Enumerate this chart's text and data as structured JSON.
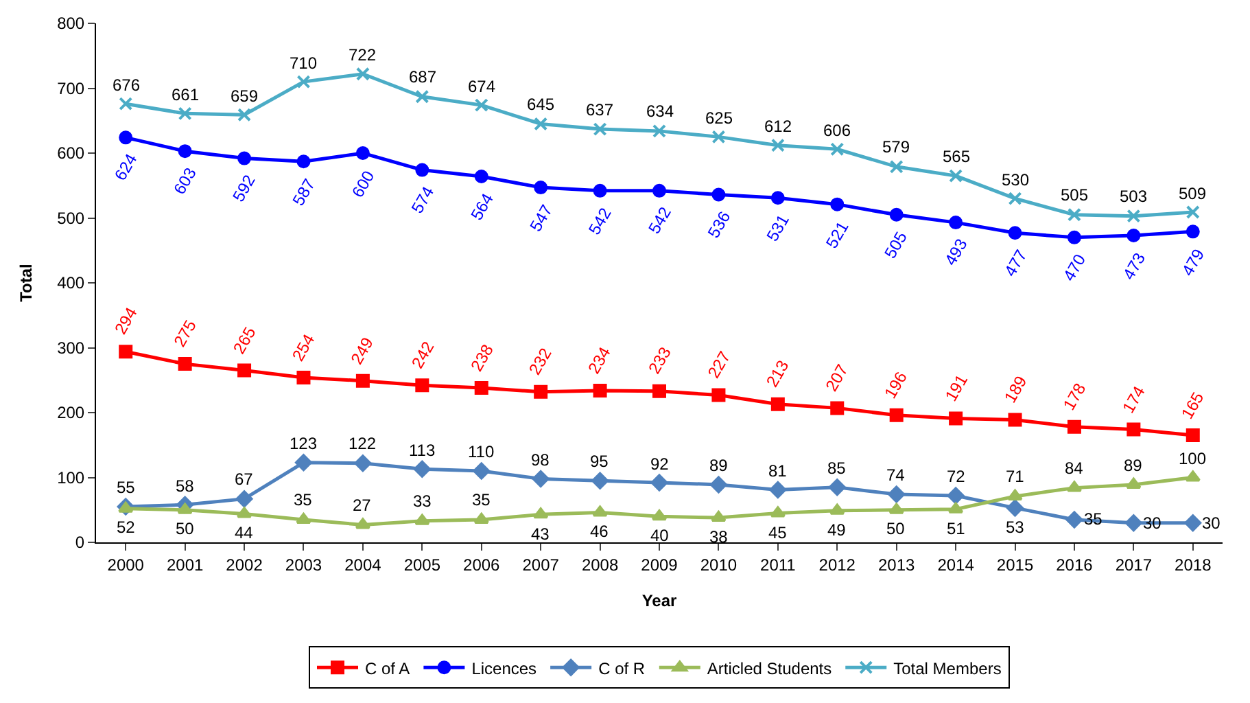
{
  "chart_data": {
    "type": "line",
    "xlabel": "Year",
    "ylabel": "Total",
    "categories": [
      "2000",
      "2001",
      "2002",
      "2003",
      "2004",
      "2005",
      "2006",
      "2007",
      "2008",
      "2009",
      "2010",
      "2011",
      "2012",
      "2013",
      "2014",
      "2015",
      "2016",
      "2017",
      "2018"
    ],
    "ylim": [
      0,
      800
    ],
    "yticks": [
      0,
      100,
      200,
      300,
      400,
      500,
      600,
      700,
      800
    ],
    "legend": "bottom",
    "data_labels": true,
    "series": [
      {
        "name": "C of A",
        "color": "#ff0000",
        "marker": "square",
        "values": [
          294,
          275,
          265,
          254,
          249,
          242,
          238,
          232,
          234,
          233,
          227,
          213,
          207,
          196,
          191,
          189,
          178,
          174,
          165
        ]
      },
      {
        "name": "Licences",
        "color": "#0000ff",
        "marker": "circle",
        "values": [
          624,
          603,
          592,
          587,
          600,
          574,
          564,
          547,
          542,
          542,
          536,
          531,
          521,
          505,
          493,
          477,
          470,
          473,
          479
        ]
      },
      {
        "name": "C of R",
        "color": "#4f81bd",
        "marker": "diamond",
        "values": [
          55,
          58,
          67,
          123,
          122,
          113,
          110,
          98,
          95,
          92,
          89,
          81,
          85,
          74,
          72,
          53,
          35,
          30,
          30
        ]
      },
      {
        "name": "Articled Students",
        "color": "#9bbb59",
        "marker": "triangle",
        "values": [
          52,
          50,
          44,
          35,
          27,
          33,
          35,
          43,
          46,
          40,
          38,
          45,
          49,
          50,
          51,
          71,
          84,
          89,
          100
        ]
      },
      {
        "name": "Total Members",
        "color": "#4bacc6",
        "marker": "cross",
        "values": [
          676,
          661,
          659,
          710,
          722,
          687,
          674,
          645,
          637,
          634,
          625,
          612,
          606,
          579,
          565,
          530,
          505,
          503,
          509
        ]
      }
    ]
  }
}
